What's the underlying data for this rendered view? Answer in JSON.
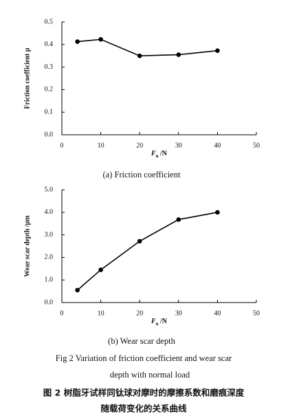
{
  "chart_data": [
    {
      "type": "line",
      "caption": "(a) Friction coefficient",
      "y_label": "Friction coefficient μ",
      "x_label": "F",
      "x_label_sub": "n",
      "x_label_unit": " /N",
      "x": [
        4,
        10,
        20,
        30,
        40
      ],
      "values": [
        0.413,
        0.423,
        0.35,
        0.355,
        0.373
      ],
      "color": "#000000",
      "xlim": [
        0,
        50
      ],
      "xticks": [
        0,
        10,
        20,
        30,
        40,
        50
      ],
      "ylim": [
        0,
        0.5
      ],
      "yticks": [
        {
          "value": 0,
          "label": "0.0"
        },
        0.1,
        0.2,
        0.3,
        0.4,
        0.5
      ]
    },
    {
      "type": "line",
      "caption": "(b) Wear scar depth",
      "y_label": "Wear scar depth /μm",
      "x_label": "F",
      "x_label_sub": "n",
      "x_label_unit": " /N",
      "x": [
        4,
        10,
        20,
        30,
        40
      ],
      "values": [
        0.55,
        1.45,
        2.72,
        3.68,
        4.0
      ],
      "color": "#000000",
      "xlim": [
        0,
        50
      ],
      "xticks": [
        0,
        10,
        20,
        30,
        40,
        50
      ],
      "ylim": [
        0,
        5
      ],
      "yticks": [
        {
          "value": 0,
          "label": "0.0"
        },
        {
          "value": 1,
          "label": "1.0"
        },
        {
          "value": 2,
          "label": "2.0"
        },
        {
          "value": 3,
          "label": "3.0"
        },
        {
          "value": 4,
          "label": "4.0"
        },
        {
          "value": 5,
          "label": "5.0"
        }
      ]
    }
  ],
  "figure_caption": {
    "en": [
      "Fig 2   Variation of friction coefficient and wear scar",
      "depth with normal load"
    ],
    "zh": [
      "图 2   树脂牙试样同钛球对摩时的摩擦系数和磨痕深度",
      "随载荷变化的关系曲线"
    ]
  }
}
